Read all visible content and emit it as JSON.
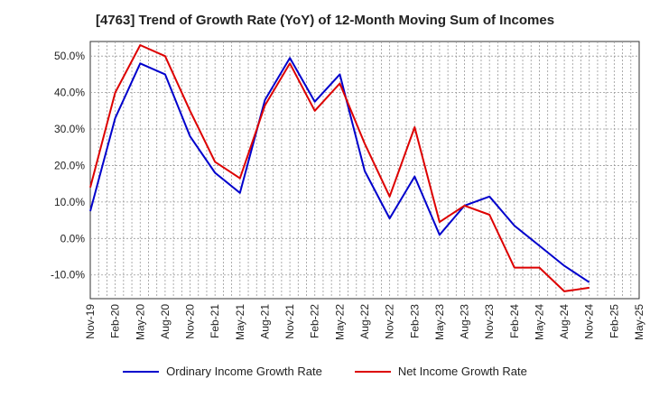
{
  "chart_data": {
    "type": "line",
    "title": "[4763]  Trend of Growth Rate (YoY) of 12-Month Moving Sum of Incomes",
    "xlabel": "",
    "ylabel": "",
    "ylim": [
      -16.5,
      54
    ],
    "grid": true,
    "legend_position": "bottom",
    "x_tick_labels": [
      "Nov-19",
      "Feb-20",
      "May-20",
      "Aug-20",
      "Nov-20",
      "Feb-21",
      "May-21",
      "Aug-21",
      "Nov-21",
      "Feb-22",
      "May-22",
      "Aug-22",
      "Nov-22",
      "Feb-23",
      "May-23",
      "Aug-23",
      "Nov-23",
      "Feb-24",
      "May-24",
      "Aug-24",
      "Nov-24",
      "Feb-25",
      "May-25"
    ],
    "y_ticks": [
      -10,
      0,
      10,
      20,
      30,
      40,
      50
    ],
    "y_tick_labels": [
      "-10.0%",
      "0.0%",
      "10.0%",
      "20.0%",
      "30.0%",
      "40.0%",
      "50.0%"
    ],
    "series": [
      {
        "name": "Ordinary Income Growth Rate",
        "color": "#0000cc",
        "values": [
          7.5,
          33,
          48,
          45,
          28,
          18,
          12.5,
          38,
          49.5,
          37.5,
          45,
          18.5,
          5.5,
          17,
          1,
          9,
          11.5,
          3.5,
          -2,
          -7.5,
          -12
        ]
      },
      {
        "name": "Net Income Growth Rate",
        "color": "#dd0000",
        "values": [
          14,
          40,
          53,
          50,
          35,
          21,
          16.5,
          36.5,
          48,
          35,
          42.5,
          26,
          11.5,
          30.5,
          4.5,
          9,
          6.5,
          -8,
          -8,
          -14.5,
          -13.5
        ]
      }
    ]
  }
}
